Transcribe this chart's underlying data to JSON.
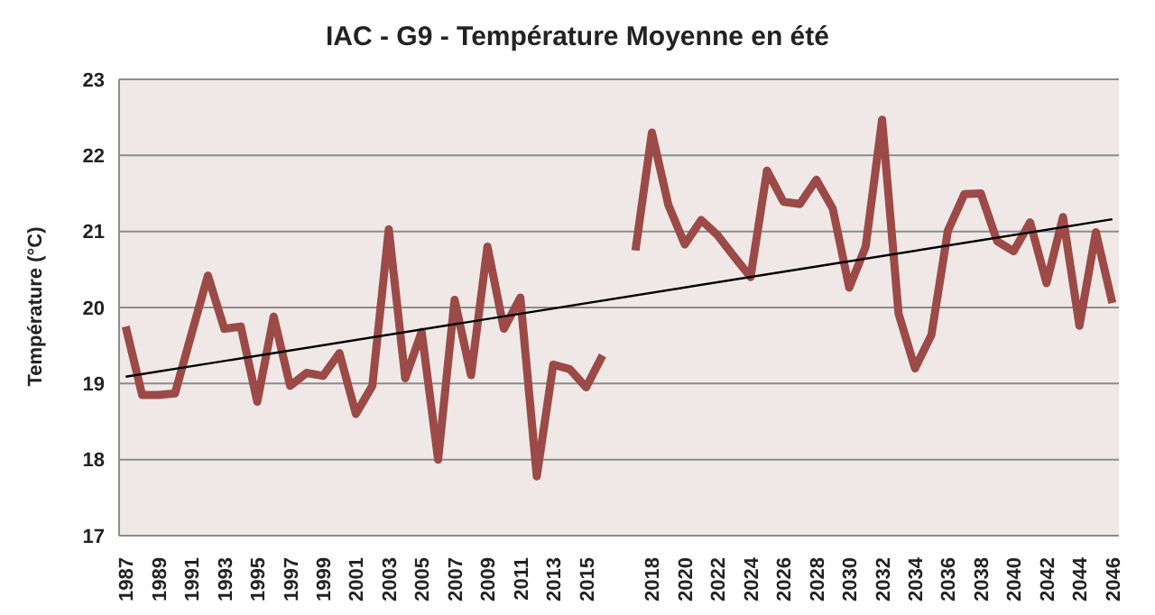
{
  "chart_data": {
    "type": "line",
    "title": "IAC - G9 - Température Moyenne en été",
    "ylabel": "Température (°C)",
    "categories": [
      "1987",
      null,
      "1989",
      null,
      "1991",
      null,
      "1993",
      null,
      "1995",
      null,
      "1997",
      null,
      "1999",
      null,
      "2001",
      null,
      "2003",
      null,
      "2005",
      null,
      "2007",
      null,
      "2009",
      null,
      "2011",
      null,
      "2013",
      null,
      "2015",
      null,
      null,
      null,
      "2018",
      null,
      "2020",
      null,
      "2022",
      null,
      "2024",
      null,
      "2026",
      null,
      "2028",
      null,
      "2030",
      null,
      "2032",
      null,
      "2034",
      null,
      "2036",
      null,
      "2038",
      null,
      "2040",
      null,
      "2042",
      null,
      "2044",
      null,
      "2046"
    ],
    "series": [
      {
        "color": "#9b4a48",
        "values": [
          19.75,
          18.85,
          18.85,
          18.87,
          19.65,
          20.42,
          19.72,
          19.75,
          18.76,
          19.88,
          18.97,
          19.14,
          19.1,
          19.4,
          18.6,
          18.97,
          21.03,
          19.07,
          19.68,
          18.0,
          20.1,
          19.11,
          20.8,
          19.72,
          20.13,
          17.78,
          19.25,
          19.19,
          18.95,
          19.37,
          null,
          20.75,
          22.3,
          21.35,
          20.83,
          21.15,
          20.95,
          20.67,
          20.4,
          21.8,
          21.39,
          21.36,
          21.68,
          21.3,
          20.26,
          20.8,
          22.47,
          19.92,
          19.2,
          19.64,
          21.01,
          21.49,
          21.5,
          20.87,
          20.74,
          21.12,
          20.32,
          21.19,
          19.76,
          20.99,
          20.06
        ]
      },
      {
        "type": "line",
        "color": "#000000",
        "values": [
          19.09,
          null,
          null,
          null,
          null,
          null,
          null,
          null,
          null,
          null,
          null,
          null,
          null,
          null,
          null,
          null,
          null,
          null,
          null,
          null,
          null,
          null,
          null,
          null,
          null,
          null,
          null,
          null,
          null,
          null,
          null,
          null,
          null,
          null,
          null,
          null,
          null,
          null,
          null,
          null,
          null,
          null,
          null,
          null,
          null,
          null,
          null,
          null,
          null,
          null,
          null,
          null,
          null,
          null,
          null,
          null,
          null,
          null,
          null,
          null,
          21.16
        ]
      }
    ],
    "ylim": [
      17,
      23
    ],
    "yticks": [
      17,
      18,
      19,
      20,
      21,
      22,
      23
    ],
    "grid": "y",
    "marker": "none"
  }
}
